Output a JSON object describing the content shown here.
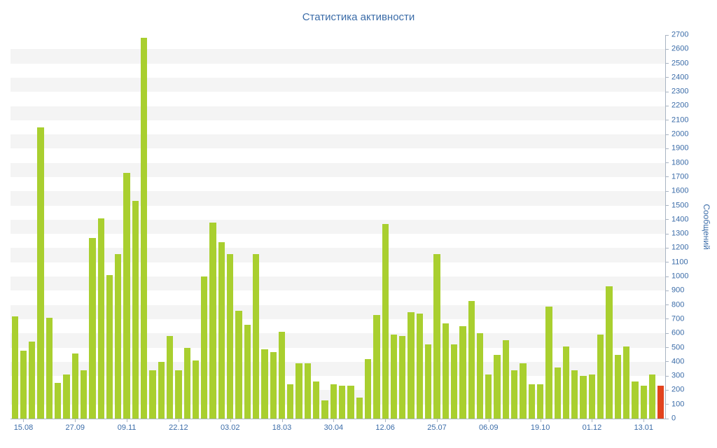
{
  "chart_data": {
    "type": "bar",
    "title": "Статистика активности",
    "xlabel": "",
    "ylabel": "Сообщений",
    "ylim": [
      0,
      2700
    ],
    "ytick_step": 100,
    "yticks": [
      0,
      100,
      200,
      300,
      400,
      500,
      600,
      700,
      800,
      900,
      1000,
      1100,
      1200,
      1300,
      1400,
      1500,
      1600,
      1700,
      1800,
      1900,
      2000,
      2100,
      2200,
      2300,
      2400,
      2500,
      2600,
      2700
    ],
    "x_labels": [
      "15.08",
      "27.09",
      "09.11",
      "22.12",
      "03.02",
      "18.03",
      "30.04",
      "12.06",
      "25.07",
      "06.09",
      "19.10",
      "01.12",
      "13.01"
    ],
    "x_label_indices": [
      1,
      7,
      13,
      19,
      25,
      31,
      37,
      43,
      49,
      55,
      61,
      67,
      73
    ],
    "values": [
      720,
      480,
      540,
      2050,
      710,
      250,
      310,
      460,
      340,
      1270,
      1410,
      1010,
      1160,
      1730,
      1530,
      2680,
      340,
      400,
      580,
      340,
      500,
      410,
      1000,
      1380,
      1240,
      1160,
      760,
      660,
      1160,
      490,
      470,
      610,
      240,
      390,
      390,
      260,
      130,
      240,
      230,
      230,
      150,
      420,
      730,
      1370,
      590,
      580,
      750,
      740,
      520,
      1160,
      670,
      520,
      650,
      830,
      600,
      310,
      450,
      550,
      340,
      390,
      240,
      240,
      790,
      360,
      510,
      340,
      300,
      310,
      590,
      930,
      450,
      510,
      260,
      230,
      310,
      230
    ],
    "highlight_index": 75,
    "grid": "striped-horizontal-bands",
    "legend": "off",
    "colors": {
      "bar": "#a9cf2f",
      "highlight": "#e2431e",
      "stripe": "#f4f4f4",
      "axis": "#a9b4c2",
      "text": "#3b6ca8",
      "background": "#ffffff"
    }
  }
}
